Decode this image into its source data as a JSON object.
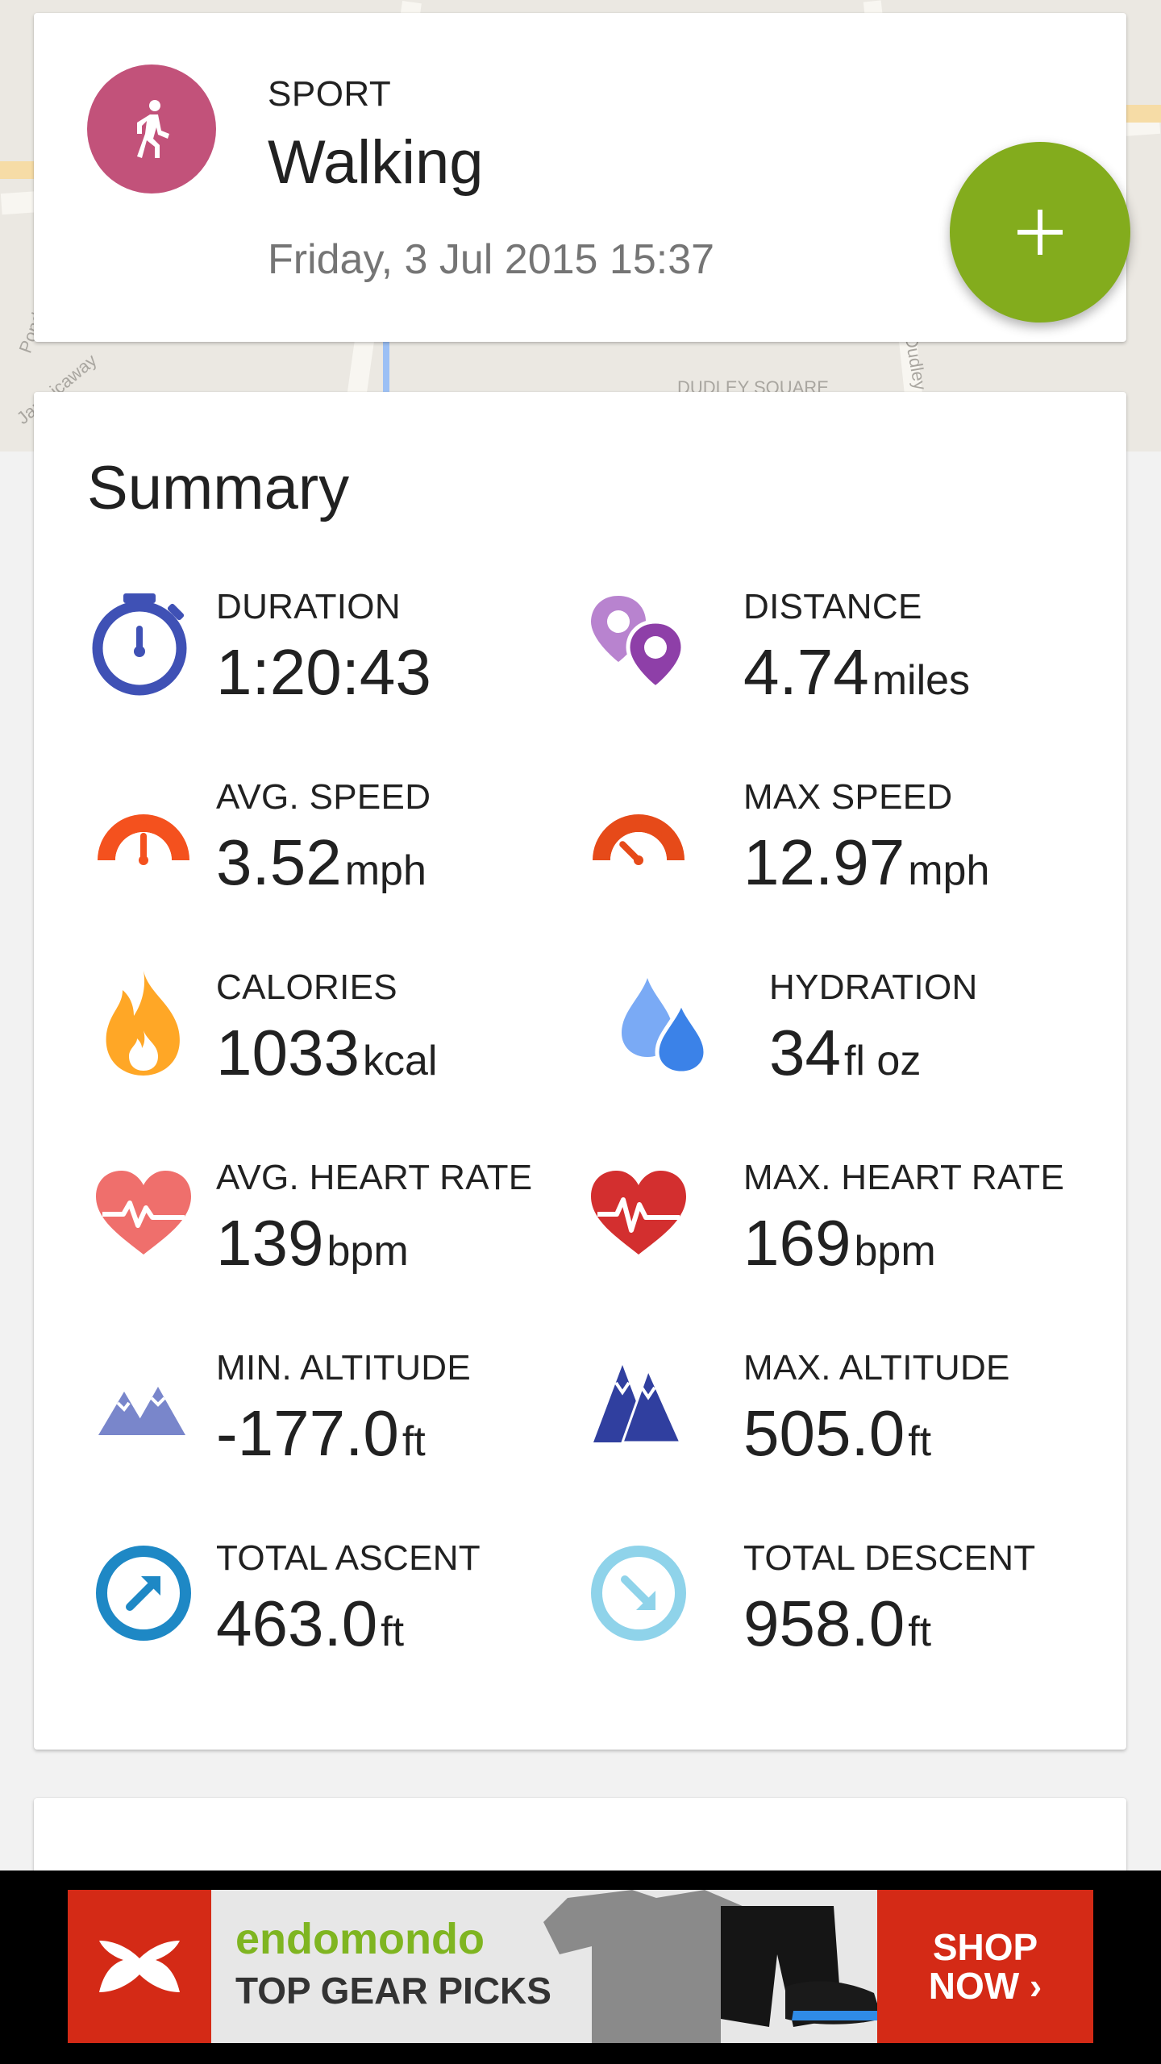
{
  "sport_card": {
    "label": "SPORT",
    "name": "Walking",
    "date": "Friday, 3 Jul 2015 15:37",
    "avatar_icon": "walking-person-icon",
    "avatar_color": "#c2527a",
    "fab_icon": "plus-icon",
    "fab_color": "#83ac1d"
  },
  "summary": {
    "title": "Summary",
    "stats": [
      {
        "label": "DURATION",
        "value": "1:20:43",
        "unit": "",
        "icon": "stopwatch-icon",
        "color": "#3f51b5"
      },
      {
        "label": "DISTANCE",
        "value": "4.74",
        "unit": "miles",
        "icon": "location-pins-icon",
        "color": "#8e44ad"
      },
      {
        "label": "AVG. SPEED",
        "value": "3.52",
        "unit": "mph",
        "icon": "speedometer-icon",
        "color": "#f4511e"
      },
      {
        "label": "MAX SPEED",
        "value": "12.97",
        "unit": "mph",
        "icon": "speedometer-max-icon",
        "color": "#e64a19"
      },
      {
        "label": "CALORIES",
        "value": "1033",
        "unit": "kcal",
        "icon": "flame-icon",
        "color": "#ffa726"
      },
      {
        "label": "HYDRATION",
        "value": "34",
        "unit": "fl oz",
        "icon": "water-drops-icon",
        "color": "#4a90e2"
      },
      {
        "label": "AVG. HEART RATE",
        "value": "139",
        "unit": "bpm",
        "icon": "heart-pulse-icon",
        "color": "#ef6f6c"
      },
      {
        "label": "MAX. HEART RATE",
        "value": "169",
        "unit": "bpm",
        "icon": "heart-pulse-max-icon",
        "color": "#d32f2f"
      },
      {
        "label": "MIN. ALTITUDE",
        "value": "-177.0",
        "unit": "ft",
        "icon": "mountains-icon",
        "color": "#7986cb"
      },
      {
        "label": "MAX. ALTITUDE",
        "value": "505.0",
        "unit": "ft",
        "icon": "mountains-max-icon",
        "color": "#303f9f"
      },
      {
        "label": "TOTAL ASCENT",
        "value": "463.0",
        "unit": "ft",
        "icon": "ascent-arrow-icon",
        "color": "#1e88c5"
      },
      {
        "label": "TOTAL DESCENT",
        "value": "958.0",
        "unit": "ft",
        "icon": "descent-arrow-icon",
        "color": "#8fd3ea"
      }
    ]
  },
  "map_labels": [
    "DUDLEY SQUARE",
    "Pond Ave",
    "Jamaicaway",
    "Dudley St"
  ],
  "ad": {
    "brand": "endomondo",
    "tagline": "TOP GEAR PICKS",
    "cta_line1": "SHOP",
    "cta_line2": "NOW ›",
    "logo_icon": "under-armour-logo"
  }
}
